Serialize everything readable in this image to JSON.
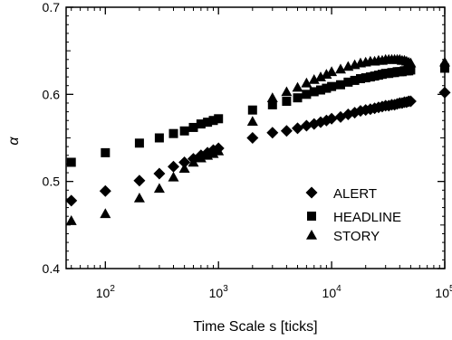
{
  "chart_data": {
    "type": "scatter",
    "xlabel": "Time Scale s [ticks]",
    "ylabel": "α",
    "xscale": "log",
    "xlim": [
      45,
      100000
    ],
    "ylim": [
      0.4,
      0.7
    ],
    "x_ticks": [
      {
        "value": 100,
        "base": "10",
        "exp": "2"
      },
      {
        "value": 1000,
        "base": "10",
        "exp": "3"
      },
      {
        "value": 10000,
        "base": "10",
        "exp": "4"
      },
      {
        "value": 100000,
        "base": "10",
        "exp": "5"
      }
    ],
    "y_ticks": [
      "0.4",
      "0.5",
      "0.6",
      "0.7"
    ],
    "legend_position": "bottom-right",
    "series": [
      {
        "name": "ALERT",
        "marker": "diamond",
        "points": [
          [
            50,
            0.478
          ],
          [
            100,
            0.489
          ],
          [
            200,
            0.501
          ],
          [
            300,
            0.509
          ],
          [
            400,
            0.517
          ],
          [
            500,
            0.522
          ],
          [
            600,
            0.526
          ],
          [
            700,
            0.53
          ],
          [
            800,
            0.533
          ],
          [
            900,
            0.536
          ],
          [
            1000,
            0.538
          ],
          [
            2000,
            0.55
          ],
          [
            3000,
            0.556
          ],
          [
            4000,
            0.558
          ],
          [
            5000,
            0.561
          ],
          [
            6000,
            0.564
          ],
          [
            7000,
            0.566
          ],
          [
            8000,
            0.568
          ],
          [
            9000,
            0.57
          ],
          [
            10000,
            0.572
          ],
          [
            12000,
            0.574
          ],
          [
            14000,
            0.577
          ],
          [
            16000,
            0.579
          ],
          [
            18000,
            0.581
          ],
          [
            20000,
            0.582
          ],
          [
            22000,
            0.583
          ],
          [
            24000,
            0.584
          ],
          [
            26000,
            0.585
          ],
          [
            28000,
            0.586
          ],
          [
            30000,
            0.587
          ],
          [
            32000,
            0.587
          ],
          [
            34000,
            0.588
          ],
          [
            36000,
            0.588
          ],
          [
            38000,
            0.589
          ],
          [
            40000,
            0.59
          ],
          [
            42000,
            0.59
          ],
          [
            44000,
            0.591
          ],
          [
            46000,
            0.591
          ],
          [
            48000,
            0.592
          ],
          [
            50000,
            0.592
          ],
          [
            100000,
            0.602
          ]
        ]
      },
      {
        "name": "HEADLINE",
        "marker": "square",
        "points": [
          [
            50,
            0.522
          ],
          [
            100,
            0.533
          ],
          [
            200,
            0.544
          ],
          [
            300,
            0.55
          ],
          [
            400,
            0.555
          ],
          [
            500,
            0.558
          ],
          [
            600,
            0.562
          ],
          [
            700,
            0.566
          ],
          [
            800,
            0.568
          ],
          [
            900,
            0.57
          ],
          [
            1000,
            0.572
          ],
          [
            2000,
            0.582
          ],
          [
            3000,
            0.588
          ],
          [
            4000,
            0.592
          ],
          [
            5000,
            0.596
          ],
          [
            6000,
            0.6
          ],
          [
            7000,
            0.603
          ],
          [
            8000,
            0.605
          ],
          [
            9000,
            0.607
          ],
          [
            10000,
            0.609
          ],
          [
            12000,
            0.611
          ],
          [
            14000,
            0.614
          ],
          [
            16000,
            0.616
          ],
          [
            18000,
            0.618
          ],
          [
            20000,
            0.619
          ],
          [
            22000,
            0.62
          ],
          [
            24000,
            0.621
          ],
          [
            26000,
            0.622
          ],
          [
            28000,
            0.623
          ],
          [
            30000,
            0.624
          ],
          [
            32000,
            0.624
          ],
          [
            34000,
            0.625
          ],
          [
            36000,
            0.625
          ],
          [
            38000,
            0.626
          ],
          [
            40000,
            0.626
          ],
          [
            42000,
            0.626
          ],
          [
            44000,
            0.627
          ],
          [
            46000,
            0.627
          ],
          [
            48000,
            0.627
          ],
          [
            50000,
            0.628
          ],
          [
            100000,
            0.63
          ]
        ]
      },
      {
        "name": "STORY",
        "marker": "triangle",
        "points": [
          [
            50,
            0.455
          ],
          [
            100,
            0.463
          ],
          [
            200,
            0.481
          ],
          [
            300,
            0.492
          ],
          [
            400,
            0.505
          ],
          [
            500,
            0.515
          ],
          [
            600,
            0.522
          ],
          [
            700,
            0.527
          ],
          [
            800,
            0.53
          ],
          [
            900,
            0.532
          ],
          [
            1000,
            0.535
          ],
          [
            2000,
            0.569
          ],
          [
            3000,
            0.596
          ],
          [
            4000,
            0.603
          ],
          [
            5000,
            0.608
          ],
          [
            6000,
            0.613
          ],
          [
            7000,
            0.617
          ],
          [
            8000,
            0.62
          ],
          [
            9000,
            0.623
          ],
          [
            10000,
            0.626
          ],
          [
            12000,
            0.629
          ],
          [
            14000,
            0.632
          ],
          [
            16000,
            0.634
          ],
          [
            18000,
            0.636
          ],
          [
            20000,
            0.637
          ],
          [
            22000,
            0.638
          ],
          [
            24000,
            0.638
          ],
          [
            26000,
            0.639
          ],
          [
            28000,
            0.639
          ],
          [
            30000,
            0.64
          ],
          [
            32000,
            0.64
          ],
          [
            34000,
            0.64
          ],
          [
            36000,
            0.64
          ],
          [
            38000,
            0.64
          ],
          [
            40000,
            0.64
          ],
          [
            42000,
            0.639
          ],
          [
            44000,
            0.639
          ],
          [
            46000,
            0.638
          ],
          [
            48000,
            0.637
          ],
          [
            50000,
            0.636
          ],
          [
            100000,
            0.637
          ]
        ]
      }
    ]
  }
}
